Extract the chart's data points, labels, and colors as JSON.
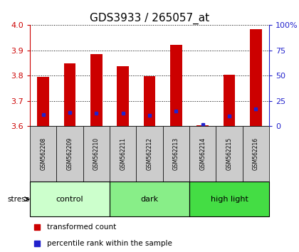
{
  "title": "GDS3933 / 265057_at",
  "samples": [
    "GSM562208",
    "GSM562209",
    "GSM562210",
    "GSM562211",
    "GSM562212",
    "GSM562213",
    "GSM562214",
    "GSM562215",
    "GSM562216"
  ],
  "red_values": [
    3.795,
    3.848,
    3.885,
    3.838,
    3.798,
    3.922,
    3.602,
    3.802,
    3.985
  ],
  "blue_values": [
    3.645,
    3.655,
    3.65,
    3.65,
    3.643,
    3.658,
    3.607,
    3.64,
    3.668
  ],
  "ymin": 3.6,
  "ymax": 4.0,
  "yticks": [
    3.6,
    3.7,
    3.8,
    3.9,
    4.0
  ],
  "right_yticks": [
    0,
    25,
    50,
    75,
    100
  ],
  "right_yticklabels": [
    "0",
    "25",
    "50",
    "75",
    "100%"
  ],
  "groups": [
    {
      "label": "control",
      "start": 0,
      "end": 3,
      "color": "#ccffcc"
    },
    {
      "label": "dark",
      "start": 3,
      "end": 6,
      "color": "#88ee88"
    },
    {
      "label": "high light",
      "start": 6,
      "end": 9,
      "color": "#44dd44"
    }
  ],
  "group_row_color": "#cccccc",
  "bar_color": "#cc0000",
  "blue_color": "#2222cc",
  "bar_width": 0.45,
  "stress_label": "stress",
  "legend_red": "transformed count",
  "legend_blue": "percentile rank within the sample",
  "title_fontsize": 11
}
